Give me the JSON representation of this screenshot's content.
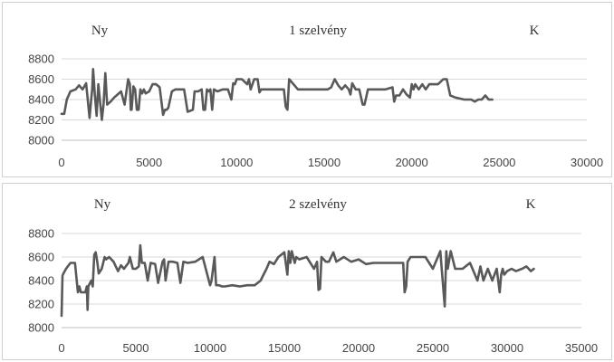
{
  "style": {
    "line_color": "#595959",
    "grid_color": "#d9d9d9",
    "frame_color": "#d0d0d0"
  },
  "chart_data": [
    {
      "type": "line",
      "title": "1 szelvény",
      "left_label": "Ny",
      "right_label": "K",
      "xlabel": "",
      "ylabel": "",
      "xlim": [
        0,
        30000
      ],
      "ylim": [
        8000,
        8800
      ],
      "xticks": [
        0,
        5000,
        10000,
        15000,
        20000,
        25000,
        30000
      ],
      "yticks": [
        8000,
        8200,
        8400,
        8600,
        8800
      ],
      "grid": true,
      "series": [
        {
          "x": [
            0,
            150,
            300,
            500,
            800,
            1000,
            1200,
            1400,
            1600,
            1700,
            1750,
            1800,
            1900,
            2000,
            2100,
            2300,
            2400,
            2500,
            2600,
            2800,
            3000,
            3200,
            3400,
            3600,
            3800,
            3900,
            3950,
            4000,
            4100,
            4200,
            4300,
            4400,
            4500,
            4600,
            4700,
            4800,
            5000,
            5200,
            5400,
            5600,
            5800,
            5900,
            6000,
            6100,
            6300,
            6500,
            7000,
            7200,
            7500,
            7600,
            7800,
            8000,
            8100,
            8200,
            8300,
            8400,
            8500,
            8600,
            8700,
            8900,
            9200,
            9500,
            9700,
            9800,
            9900,
            10000,
            10300,
            10600,
            10700,
            10800,
            11000,
            11200,
            11300,
            11400,
            11500,
            11700,
            12000,
            12500,
            12700,
            12800,
            12900,
            13000,
            13500,
            14000,
            14500,
            15000,
            15200,
            15400,
            15600,
            15800,
            16000,
            16200,
            16400,
            16500,
            16600,
            16800,
            17000,
            17200,
            17300,
            17500,
            17800,
            18000,
            18500,
            18900,
            19000,
            19100,
            19300,
            19500,
            19700,
            19900,
            20000,
            20100,
            20200,
            20400,
            20600,
            20800,
            21000,
            21500,
            21800,
            22000,
            22200,
            22500,
            23000,
            23400,
            23600,
            23800,
            24000,
            24200,
            24400,
            24600
          ],
          "y": [
            8260,
            8260,
            8400,
            8480,
            8500,
            8540,
            8500,
            8560,
            8220,
            8420,
            8500,
            8700,
            8450,
            8240,
            8550,
            8200,
            8360,
            8660,
            8350,
            8380,
            8420,
            8450,
            8480,
            8350,
            8600,
            8550,
            8300,
            8300,
            8530,
            8500,
            8300,
            8300,
            8500,
            8460,
            8500,
            8460,
            8480,
            8550,
            8550,
            8520,
            8250,
            8300,
            8300,
            8320,
            8480,
            8500,
            8500,
            8280,
            8300,
            8480,
            8480,
            8500,
            8300,
            8300,
            8500,
            8480,
            8500,
            8300,
            8500,
            8480,
            8500,
            8500,
            8400,
            8560,
            8550,
            8600,
            8600,
            8550,
            8600,
            8500,
            8600,
            8600,
            8470,
            8500,
            8500,
            8500,
            8500,
            8500,
            8500,
            8330,
            8300,
            8600,
            8500,
            8500,
            8500,
            8500,
            8500,
            8520,
            8600,
            8540,
            8500,
            8540,
            8500,
            8450,
            8560,
            8500,
            8500,
            8350,
            8350,
            8500,
            8500,
            8500,
            8500,
            8520,
            8380,
            8440,
            8440,
            8500,
            8450,
            8420,
            8550,
            8500,
            8550,
            8500,
            8550,
            8500,
            8550,
            8550,
            8600,
            8600,
            8440,
            8420,
            8400,
            8400,
            8380,
            8400,
            8400,
            8440,
            8400,
            8400
          ]
        }
      ]
    },
    {
      "type": "line",
      "title": "2 szelvény",
      "left_label": "Ny",
      "right_label": "K",
      "xlabel": "",
      "ylabel": "",
      "xlim": [
        0,
        35000
      ],
      "ylim": [
        8000,
        8800
      ],
      "xticks": [
        0,
        5000,
        10000,
        15000,
        20000,
        25000,
        30000,
        35000
      ],
      "yticks": [
        8000,
        8200,
        8400,
        8600,
        8800
      ],
      "grid": true,
      "series": [
        {
          "x": [
            0,
            60,
            120,
            300,
            600,
            900,
            1100,
            1200,
            1300,
            1600,
            1700,
            1750,
            1800,
            2000,
            2100,
            2200,
            2300,
            2400,
            2500,
            2700,
            2900,
            3000,
            3200,
            3500,
            3800,
            4000,
            4200,
            4500,
            4600,
            4800,
            5000,
            5200,
            5300,
            5400,
            5600,
            5800,
            6000,
            6300,
            6500,
            6800,
            6900,
            7000,
            7200,
            7500,
            7800,
            8000,
            8200,
            8500,
            9000,
            9500,
            10000,
            10100,
            10300,
            10400,
            10600,
            10800,
            11000,
            11500,
            12000,
            12500,
            13000,
            13200,
            13400,
            13600,
            13800,
            14000,
            14300,
            14600,
            15000,
            15200,
            15300,
            15400,
            15500,
            15700,
            15800,
            16000,
            16500,
            17000,
            17200,
            17300,
            17400,
            17500,
            17800,
            18000,
            18300,
            18500,
            19000,
            19500,
            20000,
            20500,
            21000,
            21500,
            22000,
            22500,
            23000,
            23100,
            23200,
            23300,
            23500,
            24000,
            24500,
            25000,
            25500,
            25800,
            25900,
            26000,
            26200,
            26500,
            27000,
            27500,
            28000,
            28200,
            28400,
            28700,
            29000,
            29300,
            29500,
            29600,
            29700,
            29800,
            30000,
            30300,
            30600,
            31000,
            31300,
            31600,
            31800
          ],
          "y": [
            8100,
            8440,
            8460,
            8500,
            8550,
            8550,
            8300,
            8350,
            8300,
            8300,
            8350,
            8150,
            8350,
            8400,
            8350,
            8620,
            8640,
            8560,
            8460,
            8500,
            8600,
            8580,
            8600,
            8560,
            8480,
            8530,
            8500,
            8550,
            8600,
            8500,
            8500,
            8520,
            8700,
            8550,
            8550,
            8400,
            8550,
            8540,
            8380,
            8560,
            8580,
            8400,
            8560,
            8560,
            8550,
            8380,
            8560,
            8550,
            8560,
            8600,
            8360,
            8400,
            8600,
            8360,
            8360,
            8350,
            8350,
            8360,
            8350,
            8360,
            8360,
            8380,
            8400,
            8450,
            8500,
            8560,
            8540,
            8600,
            8640,
            8450,
            8650,
            8550,
            8650,
            8550,
            8600,
            8580,
            8600,
            8500,
            8560,
            8320,
            8330,
            8600,
            8560,
            8560,
            8640,
            8560,
            8600,
            8560,
            8580,
            8540,
            8550,
            8550,
            8550,
            8550,
            8550,
            8300,
            8350,
            8560,
            8600,
            8600,
            8600,
            8500,
            8650,
            8180,
            8650,
            8500,
            8650,
            8500,
            8500,
            8550,
            8400,
            8520,
            8400,
            8500,
            8400,
            8500,
            8300,
            8450,
            8500,
            8450,
            8480,
            8500,
            8480,
            8500,
            8520,
            8480,
            8500
          ]
        }
      ]
    }
  ]
}
